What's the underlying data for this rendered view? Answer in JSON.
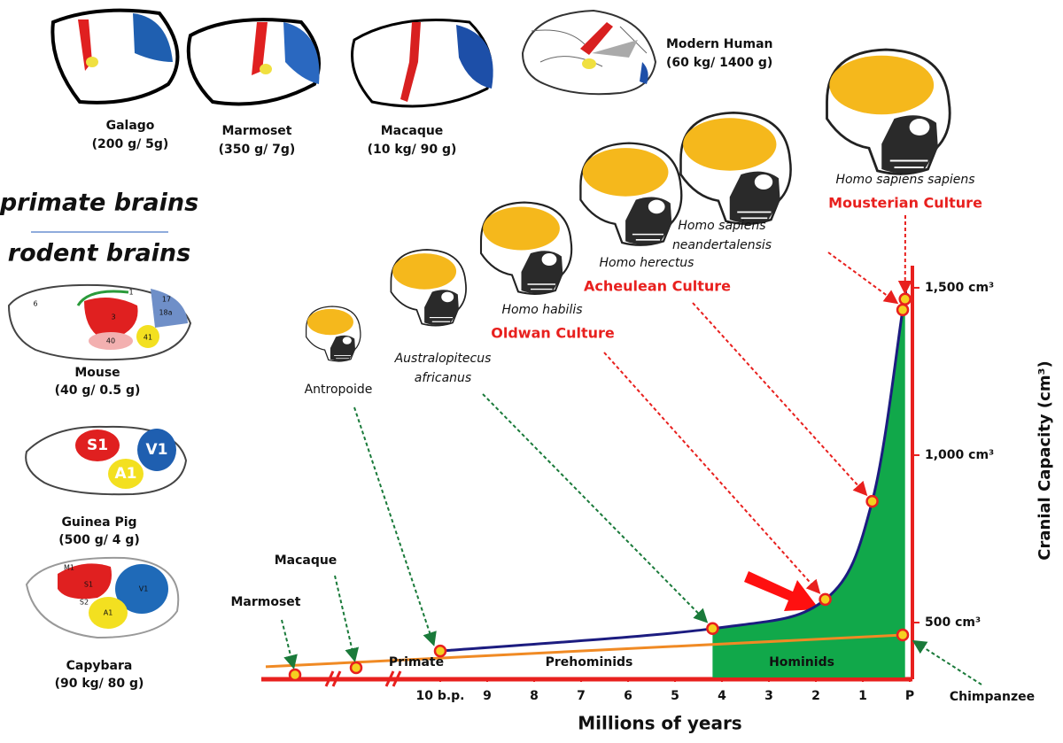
{
  "primate_brains": [
    {
      "name": "Galago",
      "size": "(200 g/ 5g)"
    },
    {
      "name": "Marmoset",
      "size": "(350 g/ 7g)"
    },
    {
      "name": "Macaque",
      "size": "(10 kg/ 90 g)"
    },
    {
      "name": "Modern Human",
      "size": "(60 kg/ 1400 g)"
    }
  ],
  "headings": [
    "primate brains",
    "rodent brains"
  ],
  "rodent_brains": [
    {
      "name": "Mouse",
      "size": "(40 g/ 0.5 g)",
      "areas": [
        "6",
        "1",
        "17",
        "3",
        "18a",
        "40",
        "41"
      ]
    },
    {
      "name": "Guinea Pig",
      "size": "(500 g/ 4 g)",
      "areas": [
        "S1",
        "V1",
        "A1"
      ]
    },
    {
      "name": "Capybara",
      "size": "(90 kg/ 80 g)",
      "areas": [
        "M1",
        "S1",
        "S2",
        "A1",
        "V1"
      ]
    }
  ],
  "species": [
    {
      "name": [
        "Antropoide"
      ]
    },
    {
      "name": [
        "Australopitecus",
        "africanus"
      ]
    },
    {
      "name": [
        "Homo habilis"
      ],
      "culture": "Oldwan Culture"
    },
    {
      "name": [
        "Homo herectus"
      ],
      "culture": "Acheulean Culture"
    },
    {
      "name": [
        "Homo sapiens",
        "neandertalensis"
      ]
    },
    {
      "name": [
        "Homo sapiens sapiens"
      ],
      "culture": "Mousterian  Culture"
    }
  ],
  "chart_data": {
    "type": "line",
    "x_label": "Millions of years",
    "y_label": "Cranial Capacity (cm³)",
    "xlim": [
      10,
      0
    ],
    "ylim": [
      336,
      1566
    ],
    "xticks": [
      {
        "value": 10,
        "label": "10 b.p."
      },
      9,
      8,
      7,
      6,
      5,
      4,
      3,
      2,
      1,
      {
        "value": 0,
        "label": "P"
      }
    ],
    "yticks": [
      {
        "value": 500,
        "label": "500 cm³"
      },
      {
        "value": 1000,
        "label": "1,000 cm³"
      },
      {
        "value": 1500,
        "label": "1,500 cm³"
      }
    ],
    "series": [
      {
        "color": "#1c1c80",
        "x": [
          10,
          4.2,
          1.8,
          0.8,
          0.15,
          0.1
        ],
        "values": [
          415,
          482,
          569,
          862,
          1434,
          1466
        ]
      },
      {
        "color": "#f08a24",
        "x": [
          10,
          0.15
        ],
        "values": [
          394,
          463
        ]
      }
    ],
    "regions": [
      "Primate",
      "Prehominids",
      "Hominids"
    ],
    "stub_points": [
      "Marmoset",
      "Macaque"
    ],
    "chimp_label": "Chimpanzee"
  }
}
